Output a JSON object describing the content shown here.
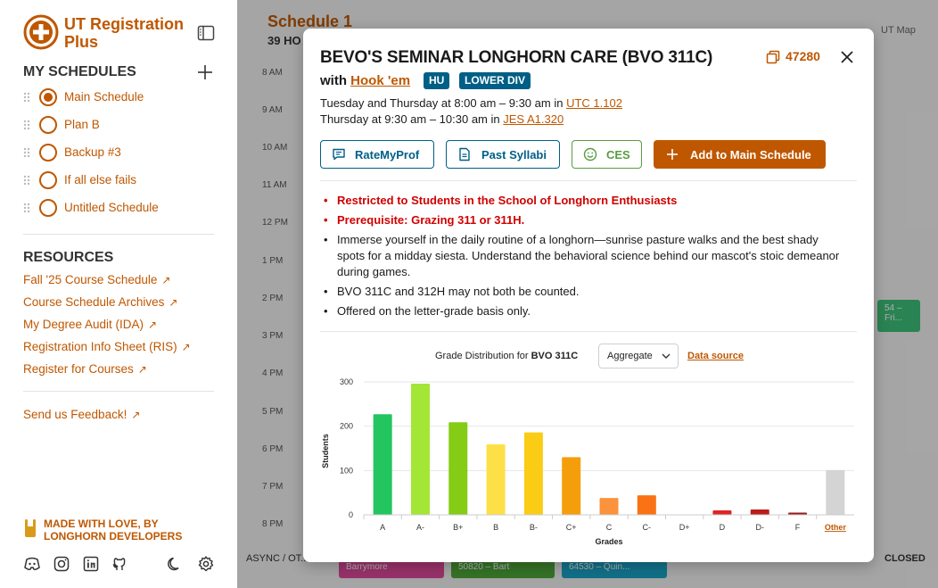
{
  "sidebar": {
    "title": "UT Registration Plus",
    "my_schedules_title": "MY SCHEDULES",
    "schedules": [
      {
        "label": "Main Schedule",
        "selected": true
      },
      {
        "label": "Plan B",
        "selected": false
      },
      {
        "label": "Backup #3",
        "selected": false
      },
      {
        "label": "If all else fails",
        "selected": false
      },
      {
        "label": "Untitled Schedule",
        "selected": false
      }
    ],
    "resources_title": "RESOURCES",
    "resources": [
      "Fall '25 Course Schedule",
      "Course Schedule Archives",
      "My Degree Audit (IDA)",
      "Registration Info Sheet (RIS)",
      "Register for Courses"
    ],
    "feedback": "Send us Feedback!",
    "made_with_love": "MADE WITH LOVE, BY LONGHORN DEVELOPERS",
    "social_icons": [
      "discord-icon",
      "instagram-icon",
      "linkedin-icon",
      "github-icon"
    ],
    "settings_icons": [
      "moon-icon",
      "gear-icon"
    ]
  },
  "calendar": {
    "title": "Schedule 1",
    "hours_partial": "39 HO",
    "hours": [
      "8 AM",
      "9 AM",
      "10 AM",
      "11 AM",
      "12 PM",
      "1 PM",
      "2 PM",
      "3 PM",
      "4 PM",
      "5 PM",
      "6 PM",
      "7 PM",
      "8 PM"
    ],
    "toolbar_right": "UT Map",
    "async_label": "ASYNC / OT...",
    "closed_label": "CLOSED",
    "bottom_blocks": [
      "Barrymore",
      "50820 – Bart",
      "64530 – Quin..."
    ],
    "side_block": "54 – Fri..."
  },
  "course": {
    "title": "BEVO'S SEMINAR LONGHORN CARE (BVO 311C)",
    "unique_number": "47280",
    "with_prefix": "with",
    "instructor": "Hook 'em",
    "tags": [
      "HU",
      "LOWER DIV"
    ],
    "meetings": [
      {
        "text": "Tuesday and Thursday at 8:00 am – 9:30 am in",
        "location": "UTC 1.102"
      },
      {
        "text": "Thursday at 9:30 am – 10:30 am in",
        "location": "JES A1.320"
      }
    ],
    "buttons": {
      "rate_my_prof": "RateMyProf",
      "past_syllabi": "Past Syllabi",
      "ces": "CES",
      "add": "Add to Main Schedule"
    },
    "restrictions": [
      "Restricted to Students in the School of Longhorn Enthusiasts",
      "Prerequisite: Grazing 311 or 311H."
    ],
    "description": [
      "Immerse yourself in the daily routine of a longhorn—sunrise pasture walks and the best shady spots for a midday siesta. Understand the behavioral science behind our mascot's stoic demeanor during games.",
      "BVO 311C and 312H may not both be counted.",
      "Offered on the letter-grade basis only."
    ]
  },
  "grade_panel": {
    "title_prefix": "Grade Distribution for",
    "course_code": "BVO 311C",
    "dropdown_value": "Aggregate",
    "data_source": "Data source"
  },
  "chart_data": {
    "type": "bar",
    "categories": [
      "A",
      "A-",
      "B+",
      "B",
      "B-",
      "C+",
      "C",
      "C-",
      "D+",
      "D",
      "D-",
      "F",
      "Other"
    ],
    "values": [
      227,
      296,
      209,
      159,
      186,
      130,
      38,
      44,
      0,
      10,
      12,
      5,
      101
    ],
    "colors": [
      "#22c55e",
      "#a3e635",
      "#84cc16",
      "#fde047",
      "#facc15",
      "#f59e0b",
      "#fb923c",
      "#f97316",
      "#ef4444",
      "#dc2626",
      "#b91c1c",
      "#991b1b",
      "#d4d4d4"
    ],
    "xlabel": "Grades",
    "ylabel": "Students",
    "ylim": [
      0,
      300
    ],
    "yticks": [
      0,
      100,
      200,
      300
    ],
    "grid": true
  },
  "colors": {
    "accent": "#bf5700",
    "tag": "#005f86",
    "green": "#579d42",
    "restriction": "#d10000"
  }
}
